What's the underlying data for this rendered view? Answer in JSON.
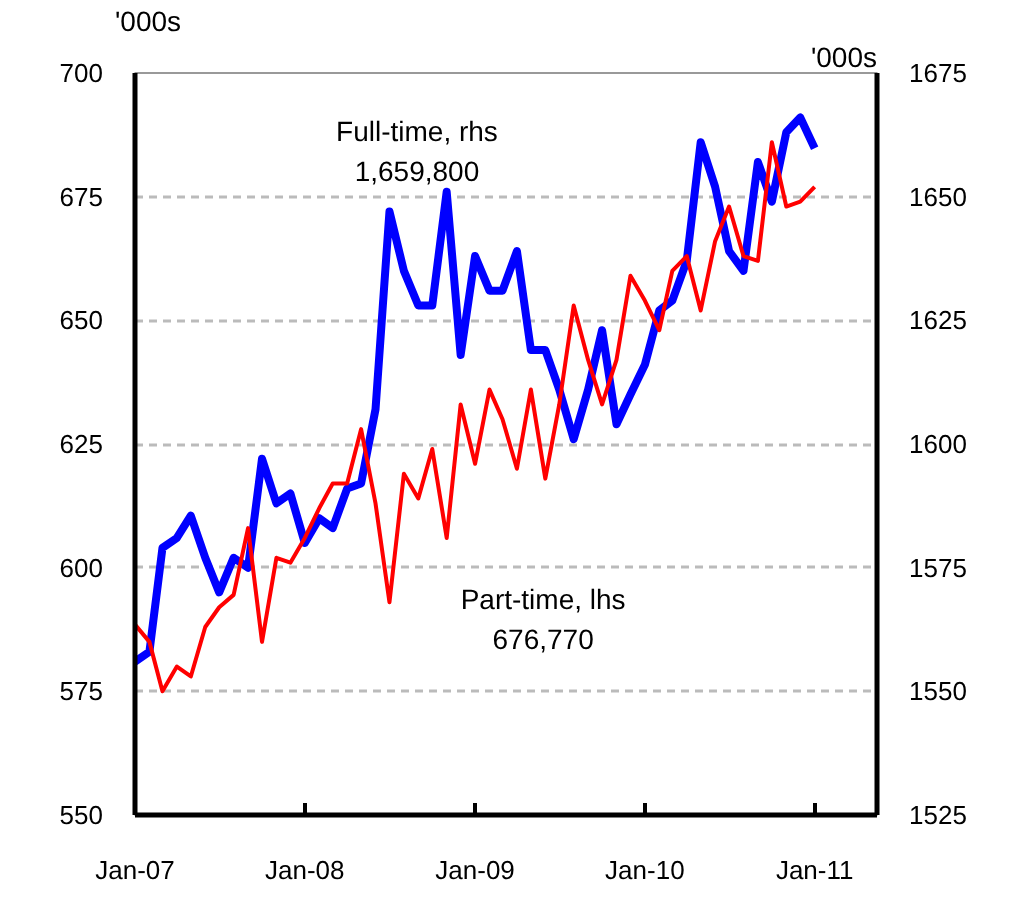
{
  "chart_data": {
    "type": "line",
    "ylabel": "'000s",
    "y2label": "'000s",
    "x": [
      "2007-01",
      "2007-02",
      "2007-03",
      "2007-04",
      "2007-05",
      "2007-06",
      "2007-07",
      "2007-08",
      "2007-09",
      "2007-10",
      "2007-11",
      "2007-12",
      "2008-01",
      "2008-02",
      "2008-03",
      "2008-04",
      "2008-05",
      "2008-06",
      "2008-07",
      "2008-08",
      "2008-09",
      "2008-10",
      "2008-11",
      "2008-12",
      "2009-01",
      "2009-02",
      "2009-03",
      "2009-04",
      "2009-05",
      "2009-06",
      "2009-07",
      "2009-08",
      "2009-09",
      "2009-10",
      "2009-11",
      "2009-12",
      "2010-01",
      "2010-02",
      "2010-03",
      "2010-04",
      "2010-05",
      "2010-06",
      "2010-07",
      "2010-08",
      "2010-09",
      "2010-10",
      "2010-11",
      "2010-12",
      "2011-01"
    ],
    "series": [
      {
        "name": "Full-time, rhs",
        "color": "#0000ff",
        "axis": "y2",
        "values": [
          1556,
          1558,
          1579,
          1581,
          1585.5,
          1577,
          1570,
          1577,
          1575,
          1597,
          1588,
          1590,
          1580,
          1585,
          1583,
          1591,
          1592,
          1607,
          1647,
          1635,
          1628,
          1628,
          1651,
          1618,
          1638,
          1631,
          1631,
          1639,
          1619,
          1619,
          1611,
          1601,
          1611,
          1623,
          1604,
          1610,
          1616,
          1627,
          1629,
          1637,
          1661,
          1652,
          1639,
          1635,
          1657,
          1649,
          1663,
          1666,
          1659.8
        ]
      },
      {
        "name": "Part-time, lhs",
        "color": "#ff0000",
        "values": [
          588.5,
          585,
          575,
          580,
          578,
          588,
          592,
          594.5,
          608,
          585,
          602,
          601,
          606,
          612,
          617,
          617,
          628,
          613,
          593,
          619,
          614,
          624,
          606,
          633,
          621,
          636,
          630,
          620,
          636,
          618,
          633,
          653,
          642,
          633,
          642,
          659,
          654,
          648,
          660,
          663,
          652,
          666,
          673,
          663,
          662,
          686,
          673,
          674,
          677
        ]
      }
    ],
    "annotations": [
      "1,659,800",
      "676,770"
    ],
    "xlim": [
      "2007-01",
      "2011-05-15"
    ],
    "xticks": [
      {
        "value": "2007-01",
        "label": "Jan-07"
      },
      {
        "value": "2008-01",
        "label": "Jan-08"
      },
      {
        "value": "2009-01",
        "label": "Jan-09"
      },
      {
        "value": "2010-01",
        "label": "Jan-10"
      },
      {
        "value": "2011-01",
        "label": "Jan-11"
      }
    ],
    "ylim": [
      550,
      700
    ],
    "yticks": [
      550,
      575,
      600,
      625,
      650,
      675,
      700
    ],
    "y2lim": [
      1525,
      1675
    ],
    "y2ticks": [
      1525,
      1550,
      1575,
      1600,
      1625,
      1650,
      1675
    ],
    "grid": "y",
    "line_style": "solid"
  }
}
